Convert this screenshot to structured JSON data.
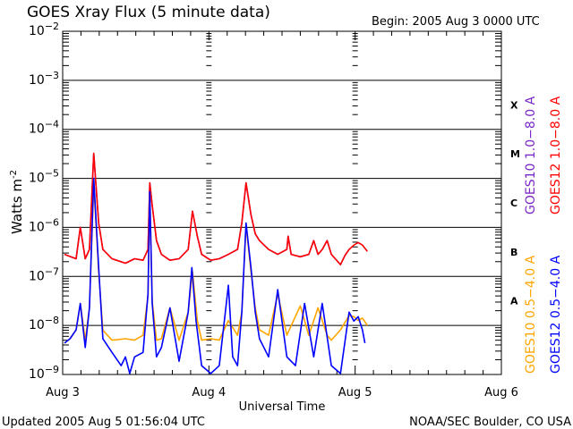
{
  "chart_data": {
    "type": "line",
    "title": "GOES Xray Flux (5 minute data)",
    "begin_label": "Begin:  2005 Aug 3 0000 UTC",
    "xlabel": "Universal Time",
    "ylabel": "Watts m",
    "ylabel_sup": "-2",
    "x_units": "hours since 2005 Aug 3 0000 UTC",
    "xlim": [
      0,
      72
    ],
    "y_scale": "log",
    "ylim_log10": [
      -9,
      -2
    ],
    "x_ticks": [
      {
        "h": 0,
        "label": "Aug 3"
      },
      {
        "h": 24,
        "label": "Aug 4"
      },
      {
        "h": 48,
        "label": "Aug 5"
      },
      {
        "h": 72,
        "label": "Aug 6"
      }
    ],
    "y_ticks": [
      {
        "exp": -2,
        "label": "-2"
      },
      {
        "exp": -3,
        "label": "-3"
      },
      {
        "exp": -4,
        "label": "-4"
      },
      {
        "exp": -5,
        "label": "-5"
      },
      {
        "exp": -6,
        "label": "-6"
      },
      {
        "exp": -7,
        "label": "-7"
      },
      {
        "exp": -8,
        "label": "-8"
      },
      {
        "exp": -9,
        "label": "-9"
      }
    ],
    "y_tick_base": "10",
    "flare_classes": [
      {
        "label": "X",
        "exp": -3.5
      },
      {
        "label": "M",
        "exp": -4.5
      },
      {
        "label": "C",
        "exp": -5.5
      },
      {
        "label": "B",
        "exp": -6.5
      },
      {
        "label": "A",
        "exp": -7.5
      }
    ],
    "grid": "horizontal at each decade",
    "series": [
      {
        "name": "GOES10 1.0-8.0 A",
        "color": "#7a28c8",
        "x": [
          0.3,
          2.2,
          2.9,
          3.7,
          4.4,
          5.1,
          5.9,
          6.6,
          8.1,
          10.3,
          11.8,
          13.2,
          14.0,
          14.3,
          14.7,
          15.4,
          16.2,
          17.6,
          19.1,
          20.6,
          21.3,
          22.1,
          22.8,
          24.3,
          25.7,
          27.2,
          28.7,
          29.4,
          30.1,
          30.9,
          31.6,
          32.3,
          33.8,
          35.3,
          36.8,
          37.0,
          37.5,
          39.0,
          40.4,
          41.2,
          41.9,
          42.6,
          43.4,
          44.1,
          45.6,
          46.3,
          47.0
        ],
        "log10": [
          -6.55,
          -6.64,
          -6.0,
          -6.64,
          -6.45,
          -4.49,
          -5.91,
          -6.45,
          -6.64,
          -6.73,
          -6.64,
          -6.67,
          -6.45,
          -5.09,
          -5.55,
          -6.27,
          -6.55,
          -6.67,
          -6.64,
          -6.45,
          -5.67,
          -6.18,
          -6.55,
          -6.67,
          -6.64,
          -6.55,
          -6.45,
          -5.91,
          -5.09,
          -5.74,
          -6.13,
          -6.27,
          -6.45,
          -6.55,
          -6.45,
          -6.18,
          -6.55,
          -6.6,
          -6.55,
          -6.27,
          -6.55,
          -6.45,
          -6.27,
          -6.55,
          -6.76,
          -6.58,
          -6.45
        ]
      },
      {
        "name": "GOES12 1.0-8.0 A",
        "color": "#ff0000",
        "x": [
          0.3,
          2.2,
          2.9,
          3.7,
          4.4,
          5.1,
          5.9,
          6.6,
          8.1,
          10.3,
          11.8,
          13.2,
          14.0,
          14.3,
          14.7,
          15.4,
          16.2,
          17.6,
          19.1,
          20.6,
          21.3,
          22.1,
          22.8,
          24.3,
          25.7,
          27.2,
          28.7,
          29.4,
          30.1,
          30.9,
          31.6,
          32.3,
          33.8,
          35.3,
          36.8,
          37.0,
          37.5,
          39.0,
          40.4,
          41.2,
          41.9,
          42.6,
          43.4,
          44.1,
          45.6,
          46.3,
          47.0,
          47.8,
          48.5,
          49.2,
          50.0
        ],
        "log10": [
          -6.55,
          -6.64,
          -6.0,
          -6.64,
          -6.45,
          -4.49,
          -5.91,
          -6.45,
          -6.64,
          -6.73,
          -6.64,
          -6.67,
          -6.45,
          -5.09,
          -5.55,
          -6.27,
          -6.55,
          -6.67,
          -6.64,
          -6.45,
          -5.67,
          -6.18,
          -6.55,
          -6.67,
          -6.64,
          -6.55,
          -6.45,
          -5.91,
          -5.09,
          -5.74,
          -6.13,
          -6.27,
          -6.45,
          -6.55,
          -6.45,
          -6.18,
          -6.55,
          -6.6,
          -6.55,
          -6.27,
          -6.55,
          -6.45,
          -6.27,
          -6.55,
          -6.76,
          -6.58,
          -6.45,
          -6.36,
          -6.31,
          -6.36,
          -6.49
        ]
      },
      {
        "name": "GOES10 0.5-4.0 A",
        "color": "#ffa500",
        "x": [
          0.3,
          1.2,
          2.2,
          2.9,
          3.7,
          4.4,
          5.1,
          5.9,
          6.6,
          8.1,
          10.3,
          11.8,
          13.2,
          14.0,
          14.3,
          14.7,
          15.4,
          16.2,
          17.6,
          19.1,
          20.6,
          21.3,
          22.1,
          22.8,
          24.3,
          25.7,
          27.2,
          28.7,
          29.4,
          30.1,
          30.9,
          31.6,
          32.3,
          33.8,
          35.3,
          36.8,
          39.0,
          40.4,
          41.9,
          43.4,
          44.1,
          45.6,
          47.0,
          47.8,
          48.5,
          49.2,
          50.0
        ],
        "log10": [
          -8.36,
          -8.27,
          -8.09,
          -7.55,
          -8.3,
          -7.64,
          -5.1,
          -6.9,
          -8.1,
          -8.3,
          -8.27,
          -8.3,
          -8.2,
          -7.4,
          -5.3,
          -7.5,
          -8.3,
          -8.27,
          -7.64,
          -8.3,
          -7.73,
          -6.9,
          -7.9,
          -8.3,
          -8.27,
          -8.3,
          -7.9,
          -8.2,
          -7.73,
          -5.95,
          -6.9,
          -7.64,
          -8.09,
          -8.2,
          -7.36,
          -8.2,
          -7.6,
          -8.2,
          -7.64,
          -8.2,
          -8.3,
          -8.09,
          -7.8,
          -7.82,
          -7.9,
          -7.85,
          -8.0
        ]
      },
      {
        "name": "GOES12 0.5-4.0 A",
        "color": "#0000ff",
        "x": [
          0.3,
          1.2,
          2.2,
          2.9,
          3.7,
          4.4,
          5.1,
          5.9,
          6.6,
          8.1,
          9.6,
          10.3,
          11.0,
          11.8,
          13.2,
          14.0,
          14.3,
          14.7,
          15.4,
          16.2,
          17.6,
          19.1,
          20.6,
          21.2,
          21.9,
          22.8,
          24.3,
          25.7,
          27.2,
          27.9,
          28.7,
          29.4,
          30.1,
          30.9,
          31.6,
          32.3,
          33.8,
          35.3,
          36.8,
          38.2,
          39.7,
          41.2,
          42.6,
          44.1,
          45.6,
          47.0,
          47.8,
          48.5,
          49.2,
          49.6
        ],
        "log10": [
          -8.36,
          -8.27,
          -8.09,
          -7.55,
          -8.45,
          -7.64,
          -5.0,
          -6.82,
          -8.27,
          -8.55,
          -8.82,
          -8.64,
          -8.98,
          -8.64,
          -8.55,
          -7.36,
          -5.27,
          -7.55,
          -8.64,
          -8.45,
          -7.64,
          -8.73,
          -7.73,
          -6.82,
          -7.91,
          -8.82,
          -8.98,
          -8.82,
          -7.18,
          -8.64,
          -8.82,
          -7.73,
          -5.91,
          -6.82,
          -7.73,
          -8.27,
          -8.64,
          -7.27,
          -8.64,
          -8.82,
          -7.55,
          -8.64,
          -7.55,
          -8.82,
          -8.98,
          -7.73,
          -7.91,
          -7.82,
          -8.09,
          -8.36
        ]
      }
    ]
  },
  "footer": {
    "updated": "Updated 2005 Aug  5 01:56:04 UTC",
    "credit": "NOAA/SEC Boulder, CO USA"
  }
}
